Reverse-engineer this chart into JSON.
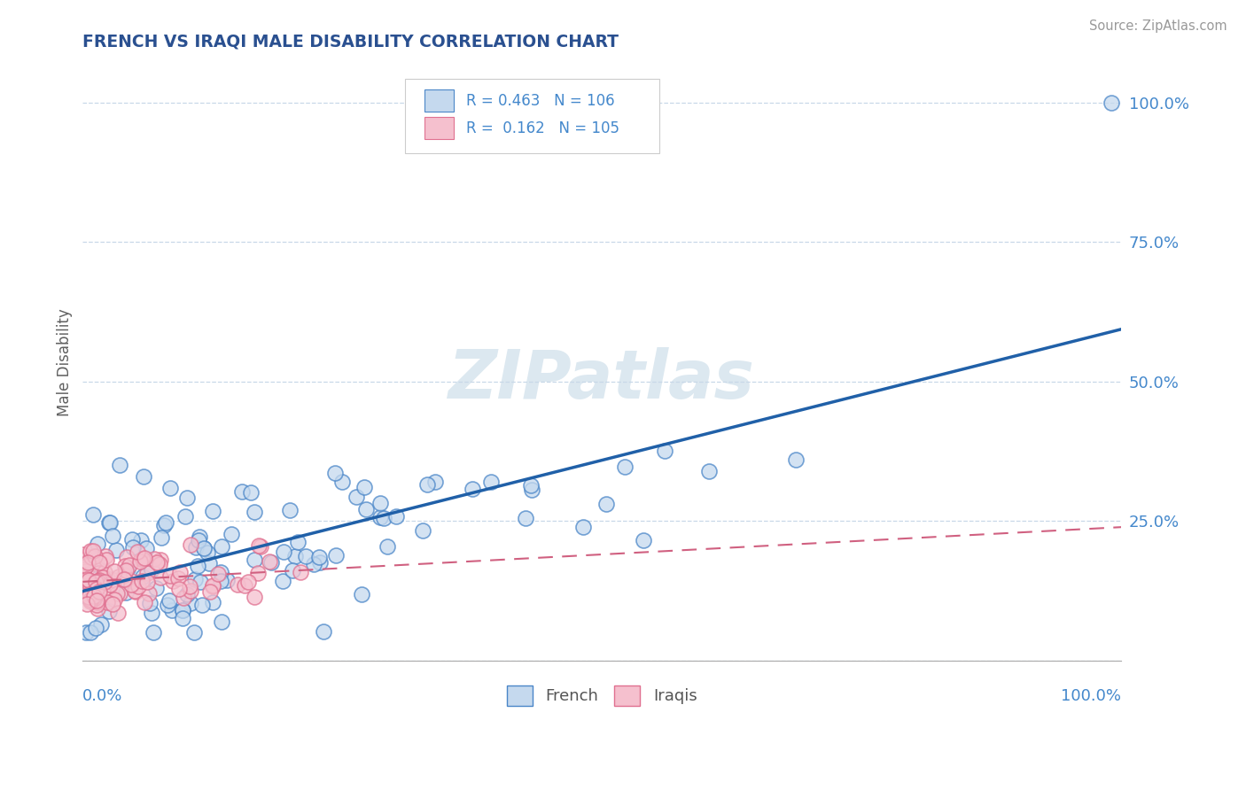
{
  "title": "FRENCH VS IRAQI MALE DISABILITY CORRELATION CHART",
  "source": "Source: ZipAtlas.com",
  "ylabel": "Male Disability",
  "legend_french": "French",
  "legend_iraqis": "Iraqis",
  "french_R": 0.463,
  "french_N": 106,
  "iraqi_R": 0.162,
  "iraqi_N": 105,
  "blue_fill": "#c5d9ee",
  "blue_edge": "#4a86c8",
  "pink_fill": "#f5c0ce",
  "pink_edge": "#e07090",
  "blue_line_color": "#2060a8",
  "pink_line_color": "#d06080",
  "watermark_text": "ZIPatlas",
  "grid_color": "#c8d8e8",
  "title_color": "#2a5090",
  "axis_label_color": "#4488cc",
  "ytick_color": "#4488cc",
  "background_color": "#ffffff",
  "watermark_color": "#dce8f0",
  "watermark_fontsize": 55,
  "ylim": [
    0,
    107
  ],
  "xlim": [
    0,
    100
  ],
  "yticks": [
    0,
    25,
    50,
    75,
    100
  ],
  "french_seed": 7,
  "iraqi_seed": 13,
  "french_x_scale": 18.0,
  "iraqi_x_scale": 5.0
}
